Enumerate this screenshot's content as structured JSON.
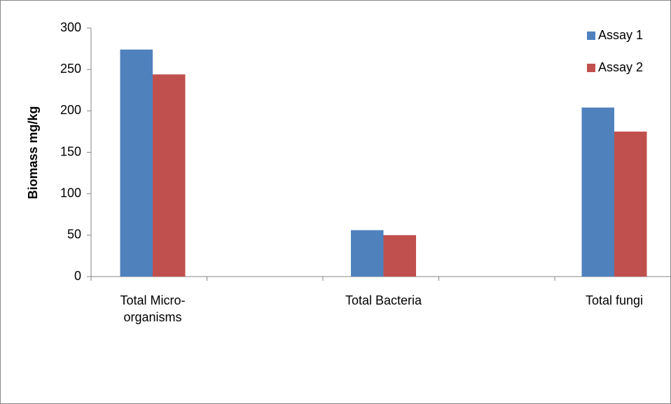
{
  "chart_data": {
    "type": "bar",
    "y_label": "Biomass mg/kg",
    "categories": [
      "Total Micro-organisms",
      "Total Bacteria",
      "Total fungi"
    ],
    "series": [
      {
        "name": "Assay 1",
        "color": "#4f81bd",
        "values": [
          274,
          56,
          204
        ]
      },
      {
        "name": "Assay 2",
        "color": "#c0504d",
        "values": [
          244,
          50,
          175
        ]
      }
    ],
    "ylim": [
      0,
      300
    ],
    "yticks": [
      0,
      50,
      100,
      150,
      200,
      250,
      300
    ],
    "legend": "top-right"
  }
}
